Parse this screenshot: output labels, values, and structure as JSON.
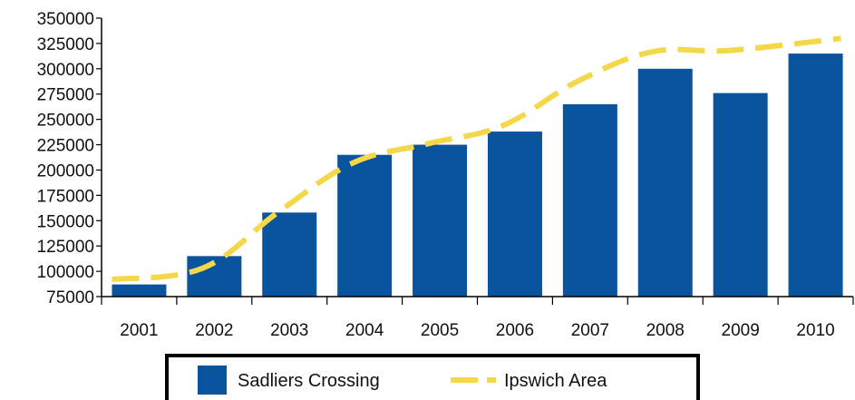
{
  "chart_data": {
    "type": "bar",
    "categories": [
      "2001",
      "2002",
      "2003",
      "2004",
      "2005",
      "2006",
      "2007",
      "2008",
      "2009",
      "2010"
    ],
    "series": [
      {
        "name": "Sadliers Crossing",
        "type": "bar",
        "color": "#0a549d",
        "values": [
          87000,
          115000,
          158000,
          215000,
          225000,
          238000,
          265000,
          300000,
          276000,
          315000
        ]
      },
      {
        "name": "Ipswich Area",
        "type": "line",
        "style": "dashed",
        "color": "#f5d84a",
        "values": [
          92000,
          103000,
          158000,
          207000,
          226000,
          244000,
          288000,
          317000,
          318000,
          330000
        ]
      }
    ],
    "ylim": [
      75000,
      350000
    ],
    "yticks": [
      "75000",
      "100000",
      "125000",
      "150000",
      "175000",
      "200000",
      "225000",
      "250000",
      "275000",
      "300000",
      "325000",
      "350000"
    ],
    "grid": false,
    "legend": "bottom"
  }
}
